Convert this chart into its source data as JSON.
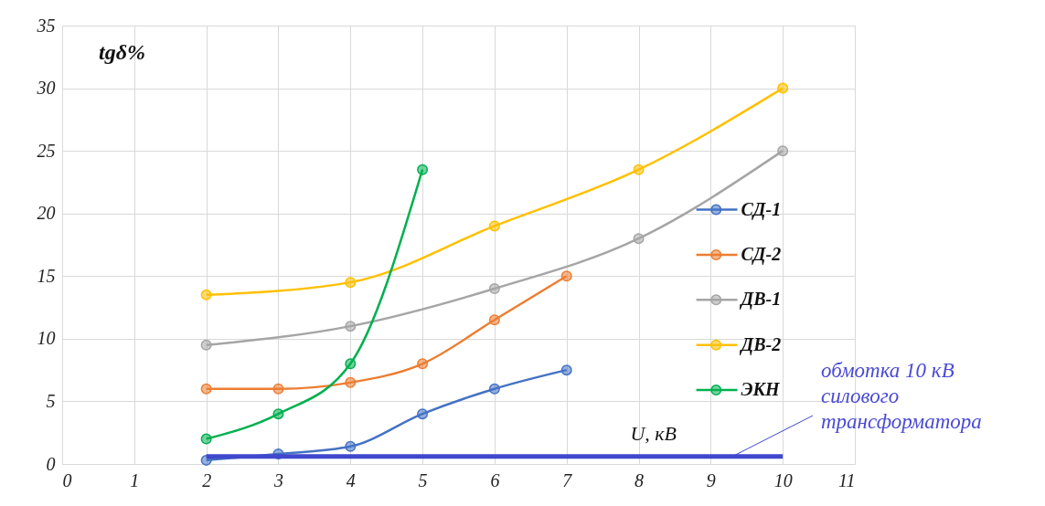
{
  "chart_data": {
    "type": "line",
    "xlabel": "U, кВ",
    "ylabel": "tgδ%",
    "xlim": [
      0,
      11
    ],
    "xticks": [
      0,
      1,
      2,
      3,
      4,
      5,
      6,
      7,
      8,
      9,
      10,
      11
    ],
    "ylim": [
      0,
      35
    ],
    "yticks": [
      0,
      5,
      10,
      15,
      20,
      25,
      30,
      35
    ],
    "grid": true,
    "legend": "right",
    "marker": "circle",
    "line_style": "solid",
    "series": [
      {
        "name": "СД-1",
        "color": "#4472c4",
        "x": [
          2,
          3,
          4,
          5,
          6,
          7
        ],
        "values": [
          0.3,
          0.8,
          1.4,
          4,
          6,
          7.5
        ]
      },
      {
        "name": "СД-2",
        "color": "#ed7d31",
        "x": [
          2,
          3,
          4,
          5,
          6,
          7
        ],
        "values": [
          6,
          6,
          6.5,
          8,
          11.5,
          15
        ]
      },
      {
        "name": "ДВ-1",
        "color": "#a5a5a5",
        "x": [
          2,
          4,
          6,
          8,
          10
        ],
        "values": [
          9.5,
          11,
          14,
          18,
          25
        ]
      },
      {
        "name": "ДВ-2",
        "color": "#ffc000",
        "x": [
          2,
          4,
          6,
          8,
          10
        ],
        "values": [
          13.5,
          14.5,
          19,
          23.5,
          30
        ]
      },
      {
        "name": "ЭКН",
        "color": "#00b050",
        "x": [
          2,
          3,
          4,
          5
        ],
        "values": [
          2,
          4,
          8,
          23.5
        ]
      },
      {
        "color": "#3f48cc",
        "x": [
          2,
          10
        ],
        "values": [
          0.6,
          0.6
        ],
        "marker": "none"
      }
    ],
    "annotations": [
      {
        "text": "обмотка 10 кВ\nсилового\nтрансформатора",
        "x": 9.3,
        "y": 0.6
      }
    ]
  }
}
